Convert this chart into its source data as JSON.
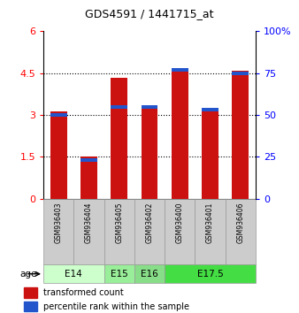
{
  "title": "GDS4591 / 1441715_at",
  "samples": [
    "GSM936403",
    "GSM936404",
    "GSM936405",
    "GSM936402",
    "GSM936400",
    "GSM936401",
    "GSM936406"
  ],
  "transformed_count": [
    3.12,
    1.52,
    4.32,
    3.25,
    4.68,
    3.18,
    4.6
  ],
  "percentile_rank": [
    50,
    23,
    55,
    55,
    77,
    53,
    75
  ],
  "age_groups": [
    {
      "label": "E14",
      "span": [
        0,
        1
      ],
      "color": "#ccffcc"
    },
    {
      "label": "E15",
      "span": [
        2,
        2
      ],
      "color": "#99ee99"
    },
    {
      "label": "E16",
      "span": [
        3,
        3
      ],
      "color": "#88dd88"
    },
    {
      "label": "E17.5",
      "span": [
        4,
        6
      ],
      "color": "#44dd44"
    }
  ],
  "ylim_left": [
    0,
    6
  ],
  "ylim_right": [
    0,
    100
  ],
  "yticks_left": [
    0,
    1.5,
    3,
    4.5,
    6
  ],
  "yticks_right": [
    0,
    25,
    50,
    75,
    100
  ],
  "bar_color_red": "#cc1111",
  "bar_color_blue": "#2255cc",
  "bar_width": 0.55,
  "background_color": "#ffffff",
  "sample_box_color": "#cccccc",
  "legend_red_label": "transformed count",
  "legend_blue_label": "percentile rank within the sample",
  "age_label": "age"
}
